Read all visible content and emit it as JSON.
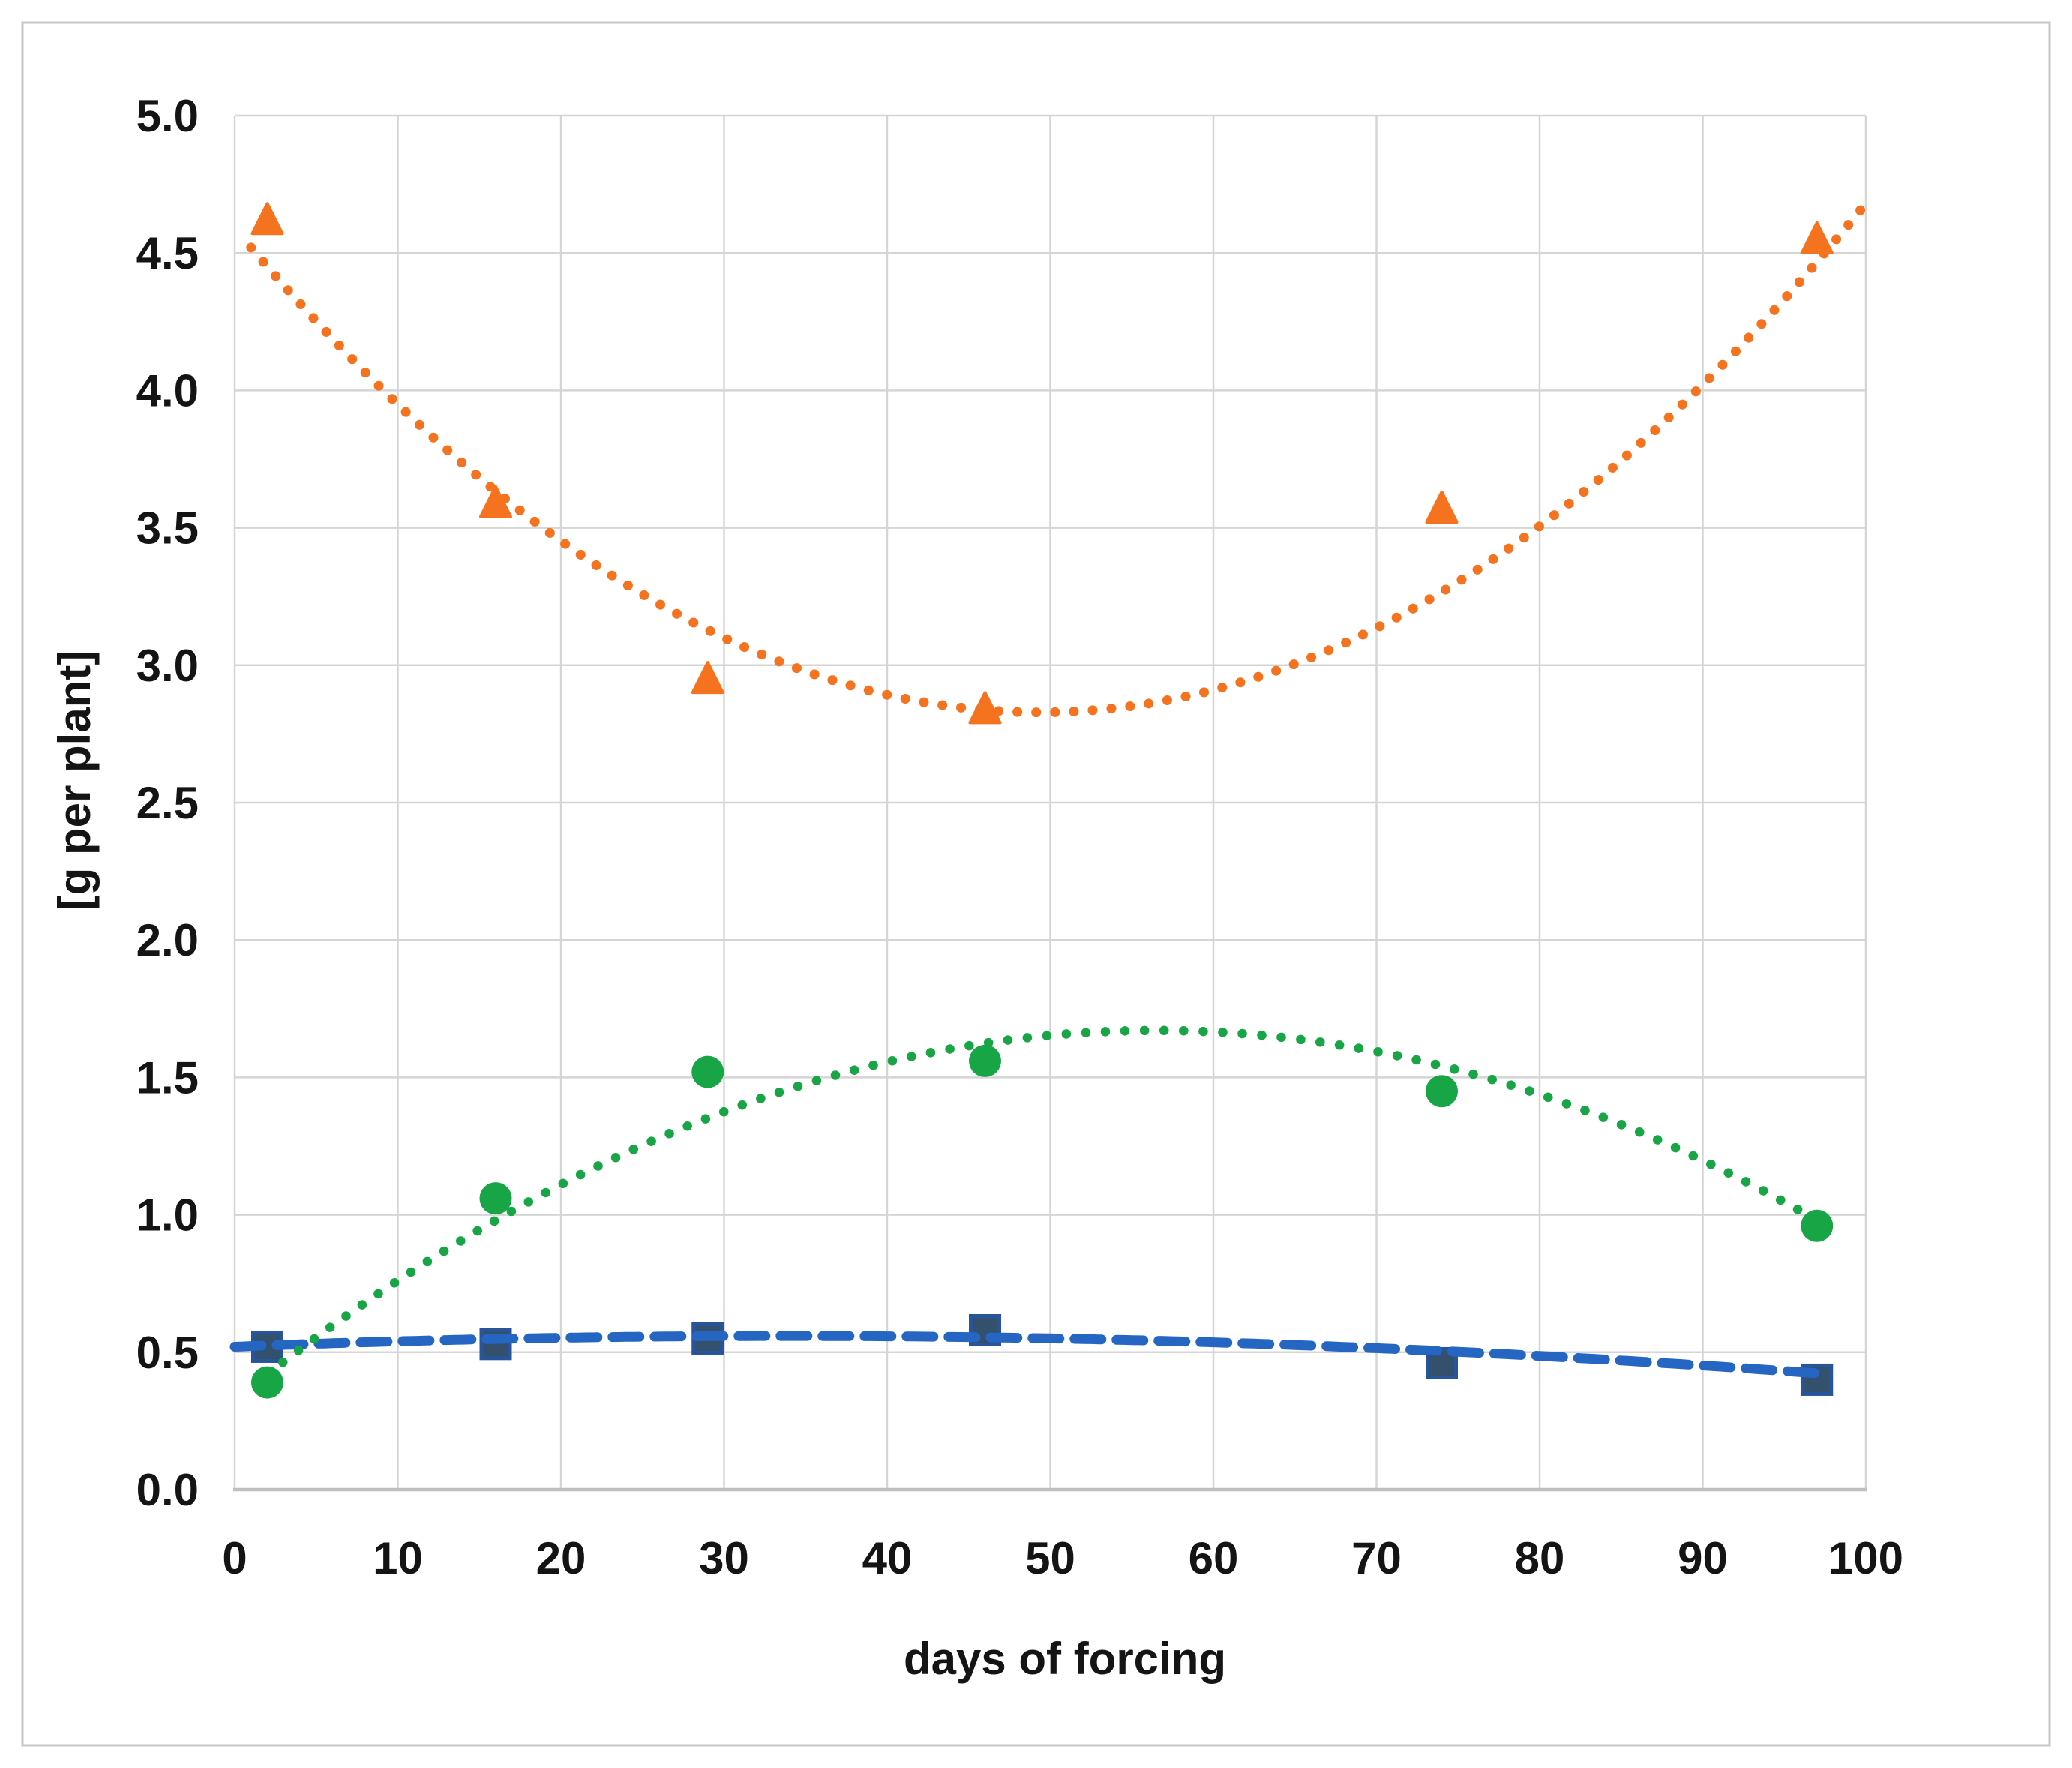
{
  "figure": {
    "background": "#FFFFFF",
    "border_color": "#C6C6C6"
  },
  "chart_data": {
    "type": "scatter",
    "title": "",
    "xlabel": "days of forcing",
    "ylabel": "[g per plant]",
    "xlim": [
      0,
      100
    ],
    "ylim": [
      0.0,
      5.0
    ],
    "x_ticks": [
      "0",
      "10",
      "20",
      "30",
      "40",
      "50",
      "60",
      "70",
      "80",
      "90",
      "100"
    ],
    "y_ticks": [
      "0.0",
      "0.5",
      "1.0",
      "1.5",
      "2.0",
      "2.5",
      "3.0",
      "3.5",
      "4.0",
      "4.5",
      "5.0"
    ],
    "grid": true,
    "legend": false,
    "gridline_color": "#D5D5D5",
    "axis_line_color": "#BFBFBF",
    "text_color": "#141414",
    "x": [
      2,
      16,
      29,
      46,
      74,
      97
    ],
    "series": [
      {
        "id": "orange-triangle-series",
        "marker": "triangle",
        "color": "#F5731E",
        "values": [
          4.62,
          3.59,
          2.95,
          2.84,
          3.57,
          4.55
        ],
        "trend": {
          "style": "dotted",
          "shape": "quadratic",
          "coef": [
            0.0007226,
            -0.071364,
            4.5906
          ],
          "domain": [
            1,
            100
          ]
        }
      },
      {
        "id": "green-circle-series",
        "marker": "circle",
        "color": "#17A546",
        "values": [
          0.39,
          1.06,
          1.52,
          1.56,
          1.45,
          0.96
        ],
        "trend": {
          "style": "dotted",
          "shape": "quadratic",
          "coef": [
            -0.0004212,
            0.047593,
            0.3265
          ],
          "domain": [
            2,
            97
          ]
        }
      },
      {
        "id": "blue-square-series",
        "marker": "square",
        "color": "#33506C",
        "marker_border": "#27549B",
        "trend_color": "#2566C2",
        "values": [
          0.52,
          0.53,
          0.55,
          0.58,
          0.46,
          0.4
        ],
        "trend": {
          "style": "dashed",
          "shape": "quadratic",
          "coef": [
            -3.415e-05,
            0.0023147,
            0.52
          ],
          "domain": [
            0,
            97.5
          ]
        }
      }
    ]
  }
}
